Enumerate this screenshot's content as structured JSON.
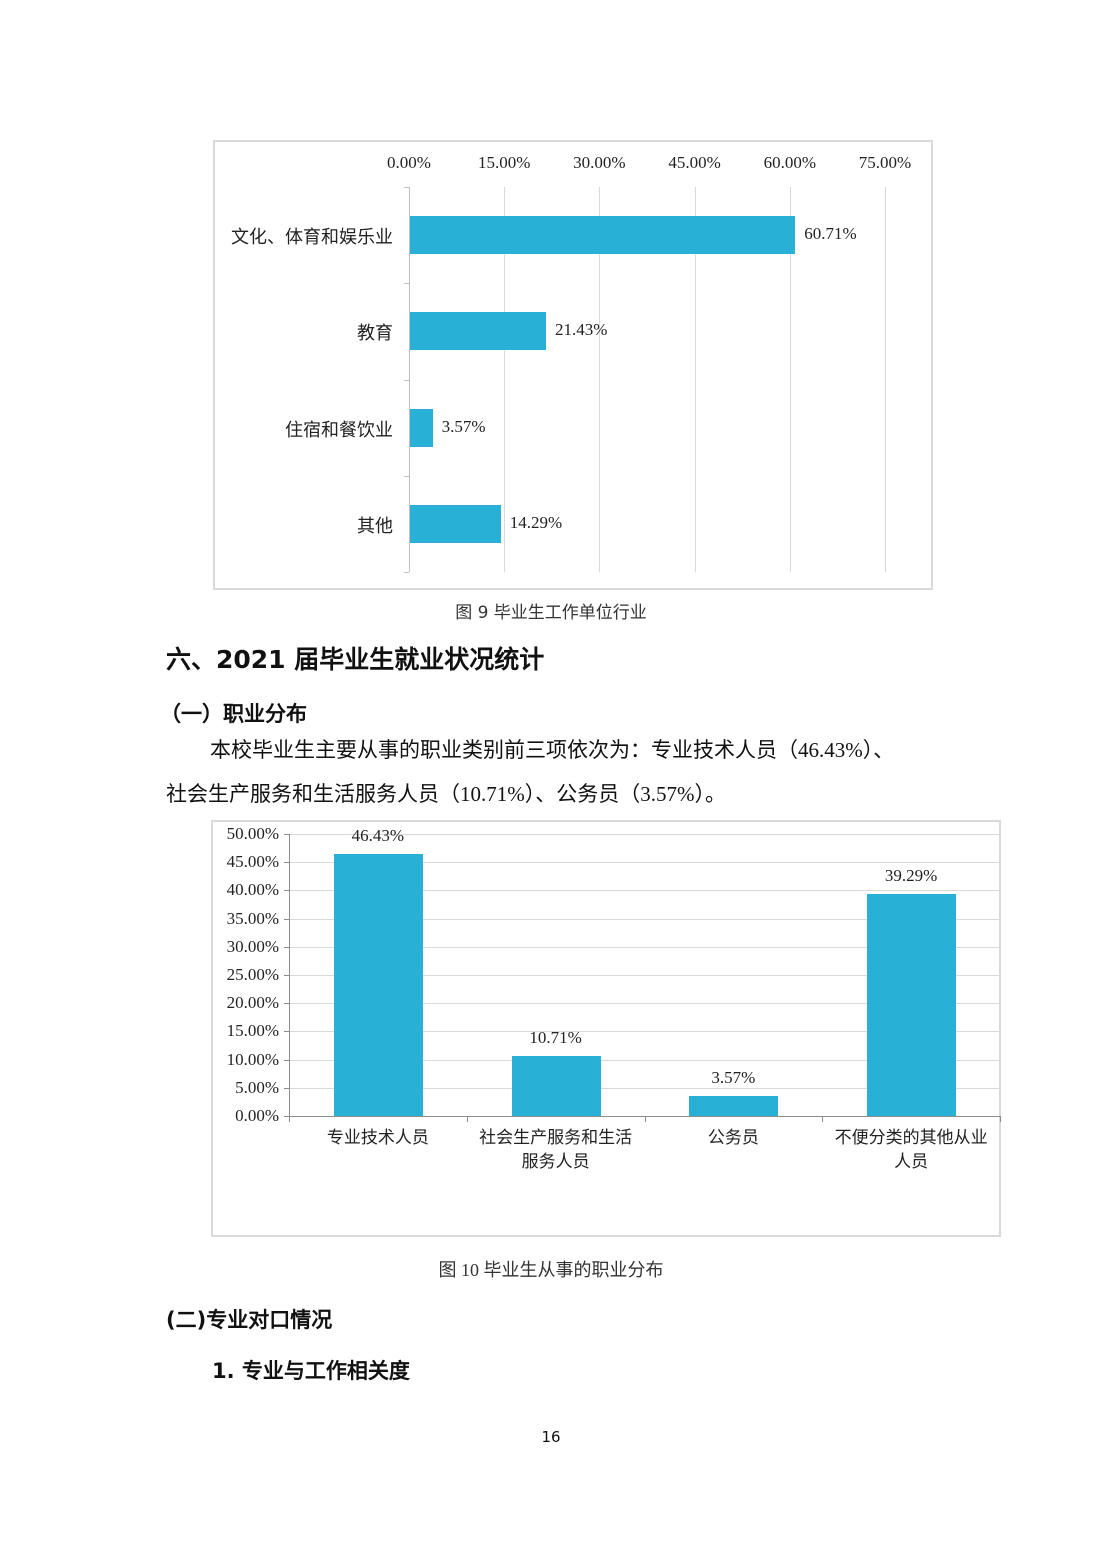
{
  "figure9": {
    "caption": "图 9 毕业生工作单位行业"
  },
  "section6": {
    "title": "六、2021 届毕业生就业状况统计",
    "sub1": {
      "title": "（一）职业分布",
      "para_line1": "本校毕业生主要从事的职业类别前三项依次为：专业技术人员（46.43%）、",
      "para_line2": "社会生产服务和生活服务人员（10.71%）、公务员（3.57%）。"
    },
    "sub2": {
      "title": "(二)专业对口情况",
      "item1": "1. 专业与工作相关度"
    }
  },
  "figure10": {
    "caption": "图 10 毕业生从事的职业分布"
  },
  "page_number": "16",
  "colors": {
    "bar": "#29b0d6",
    "grid": "#d9d9d9",
    "border": "#d9d9d9"
  },
  "chart_data": [
    {
      "type": "bar",
      "orientation": "horizontal",
      "title": "",
      "caption": "图 9 毕业生工作单位行业",
      "categories": [
        "文化、体育和娱乐业",
        "教育",
        "住宿和餐饮业",
        "其他"
      ],
      "values": [
        60.71,
        21.43,
        3.57,
        14.29
      ],
      "value_labels": [
        "60.71%",
        "21.43%",
        "3.57%",
        "14.29%"
      ],
      "xlabel": "",
      "ylabel": "",
      "xlim": [
        0,
        75
      ],
      "x_ticks": [
        "0.00%",
        "15.00%",
        "30.00%",
        "45.00%",
        "60.00%",
        "75.00%"
      ],
      "x_axis_position": "top",
      "grid": true,
      "legend": "none"
    },
    {
      "type": "bar",
      "orientation": "vertical",
      "title": "",
      "caption": "图 10 毕业生从事的职业分布",
      "categories": [
        "专业技术人员",
        "社会生产服务和生活服务人员",
        "公务员",
        "不便分类的其他从业人员"
      ],
      "category_lines": [
        [
          "专业技术人员"
        ],
        [
          "社会生产服务和生活",
          "服务人员"
        ],
        [
          "公务员"
        ],
        [
          "不便分类的其他从业",
          "人员"
        ]
      ],
      "values": [
        46.43,
        10.71,
        3.57,
        39.29
      ],
      "value_labels": [
        "46.43%",
        "10.71%",
        "3.57%",
        "39.29%"
      ],
      "xlabel": "",
      "ylabel": "",
      "ylim": [
        0,
        50
      ],
      "y_ticks": [
        "0.00%",
        "5.00%",
        "10.00%",
        "15.00%",
        "20.00%",
        "25.00%",
        "30.00%",
        "35.00%",
        "40.00%",
        "45.00%",
        "50.00%"
      ],
      "grid": true,
      "legend": "none"
    }
  ]
}
